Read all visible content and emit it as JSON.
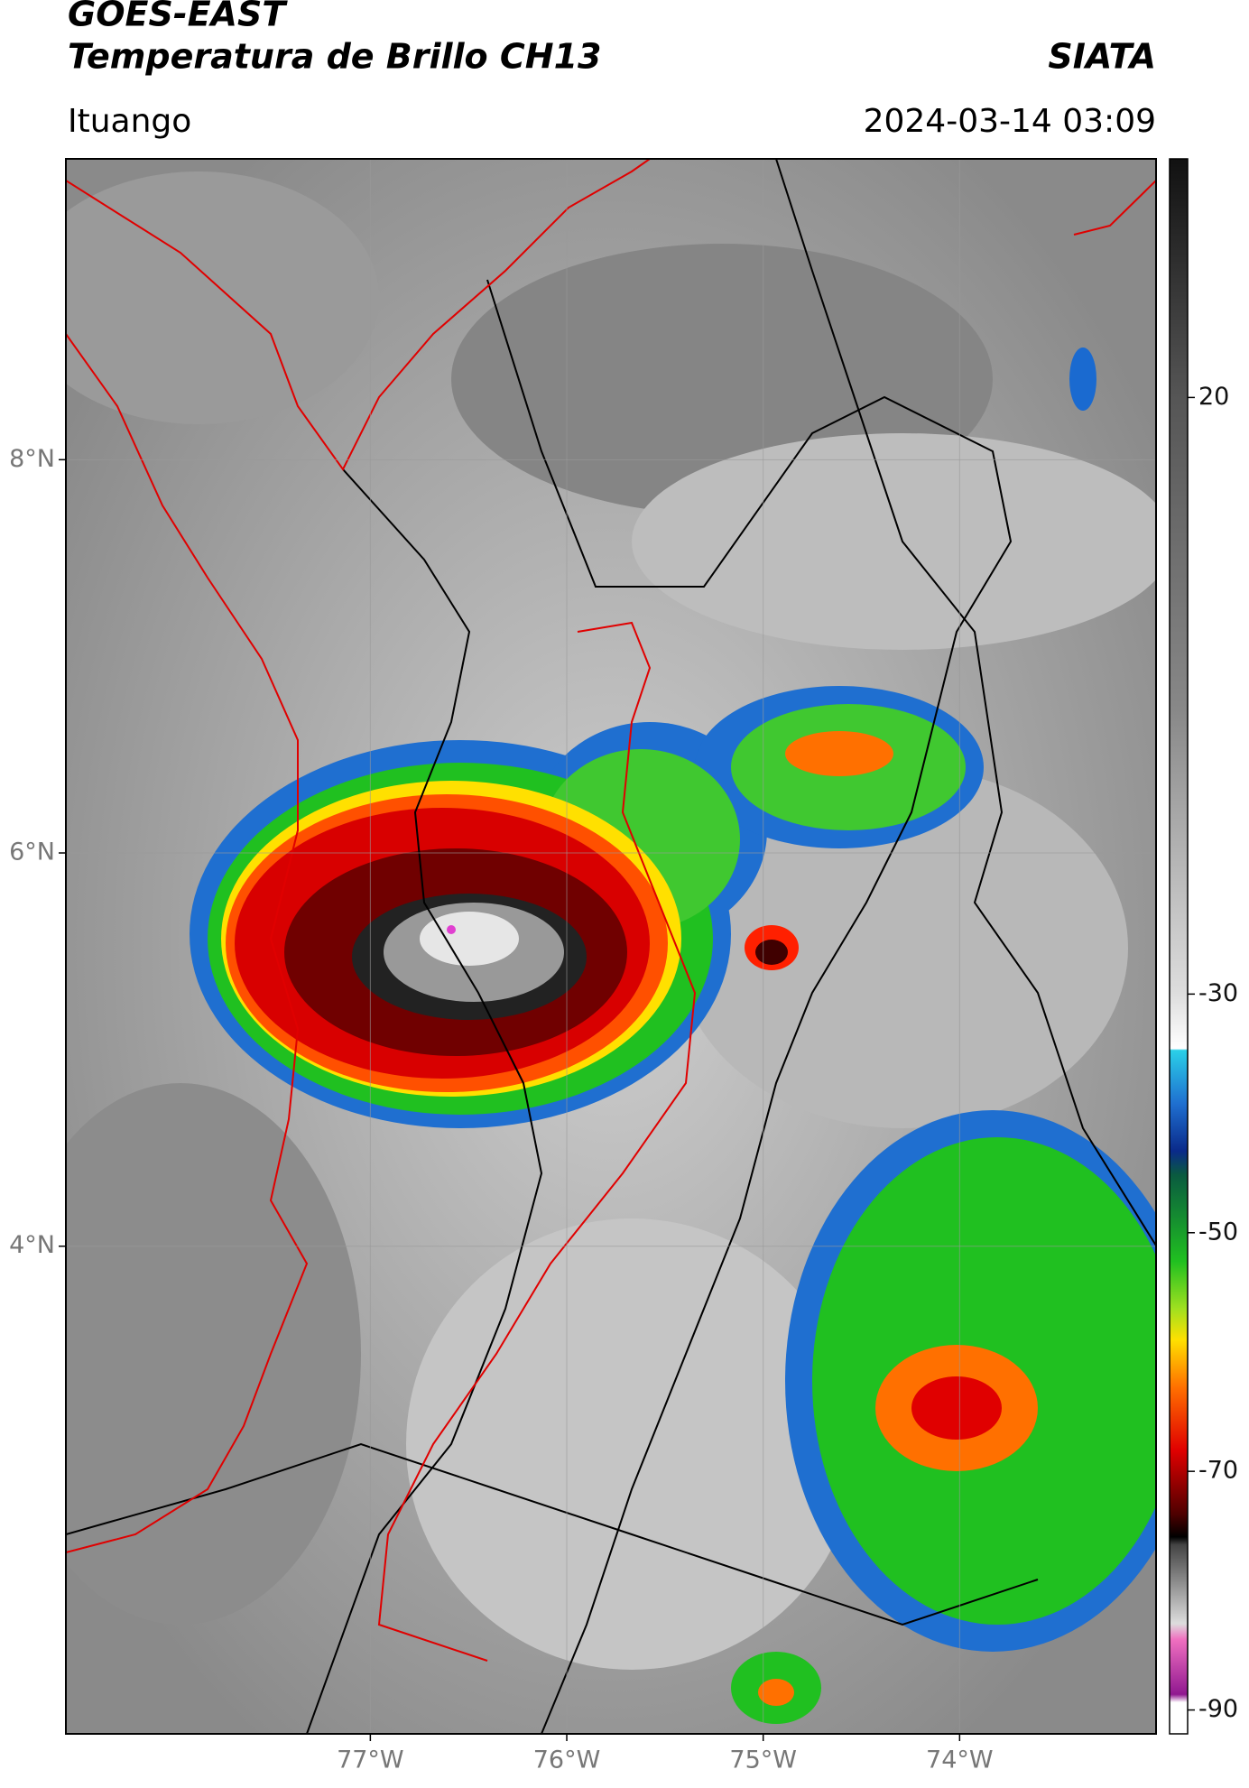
{
  "header": {
    "title": "GOES-EAST",
    "subtitle": "Temperatura de Brillo CH13",
    "source": "SIATA",
    "location": "Ituango",
    "datetime": "2024-03-14 03:09"
  },
  "map": {
    "xlim": [
      -78.55,
      -73.0
    ],
    "ylim": [
      1.52,
      9.53
    ],
    "xticks": [
      {
        "value": -77,
        "label": "77°W"
      },
      {
        "value": -76,
        "label": "76°W"
      },
      {
        "value": -75,
        "label": "75°W"
      },
      {
        "value": -74,
        "label": "74°W"
      }
    ],
    "yticks": [
      {
        "value": 8,
        "label": "8°N"
      },
      {
        "value": 6,
        "label": "6°N"
      },
      {
        "value": 4,
        "label": "4°N"
      }
    ],
    "grid": true
  },
  "colorbar": {
    "lim": [
      40,
      -92
    ],
    "ticks": [
      20,
      -30,
      -50,
      -70,
      -90
    ]
  }
}
